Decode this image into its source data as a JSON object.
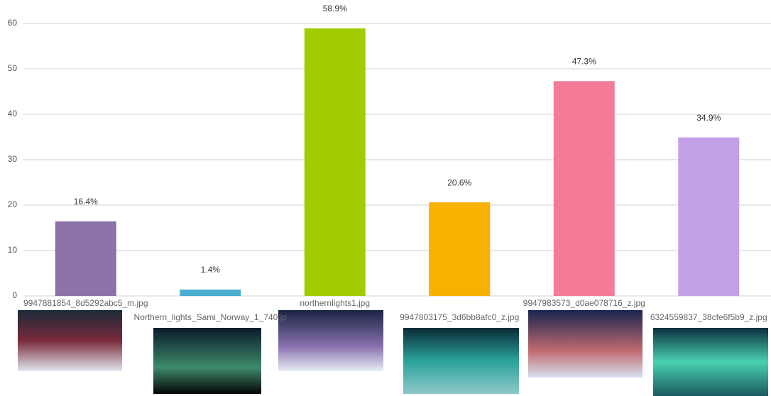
{
  "chart_data": {
    "type": "bar",
    "categories": [
      "9947881854_8d5292abc5_m.jpg",
      "Northern_lights_Sami_Norway_1_740.jp",
      "northernlights1.jpg",
      "9947803175_3d6bb8afc0_z.jpg",
      "9947983573_d0ae078716_z.jpg",
      "6324559837_38cfe6f5b9_z.jpg"
    ],
    "values": [
      16.4,
      1.4,
      58.9,
      20.6,
      47.3,
      34.9
    ],
    "value_labels": [
      "16.4%",
      "1.4%",
      "58.9%",
      "20.6%",
      "47.3%",
      "34.9%"
    ],
    "colors": [
      "#8b72a8",
      "#4aafcf",
      "#a3cc00",
      "#f7b100",
      "#f47b98",
      "#c4a0e8"
    ],
    "ylim": [
      0,
      60
    ],
    "yticks": [
      0,
      10,
      20,
      30,
      40,
      50,
      60
    ],
    "grid": true
  }
}
